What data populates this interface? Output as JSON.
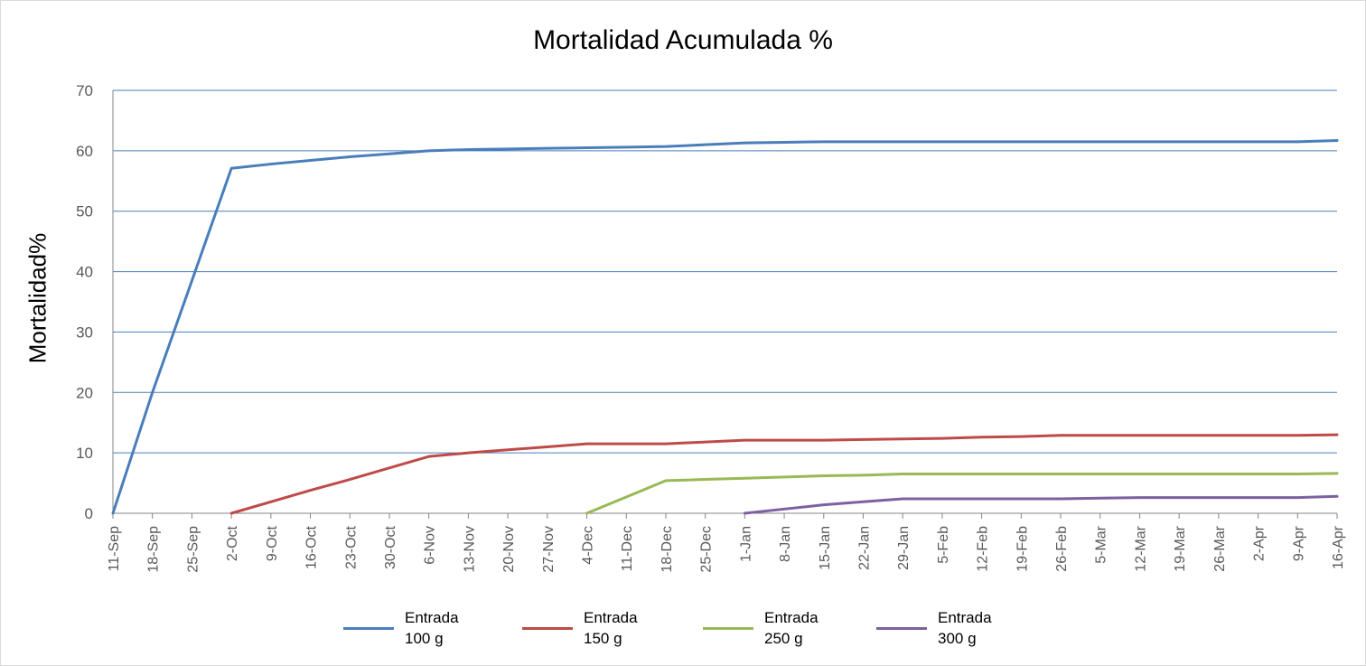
{
  "chart_data": {
    "type": "line",
    "title": "Mortalidad Acumulada %",
    "ylabel": "Mortalidad%",
    "xlabel": "",
    "ylim": [
      0,
      70
    ],
    "yticks": [
      0,
      10,
      20,
      30,
      40,
      50,
      60,
      70
    ],
    "grid": true,
    "legend_position": "bottom",
    "categories": [
      "11-Sep",
      "18-Sep",
      "25-Sep",
      "2-Oct",
      "9-Oct",
      "16-Oct",
      "23-Oct",
      "30-Oct",
      "6-Nov",
      "13-Nov",
      "20-Nov",
      "27-Nov",
      "4-Dec",
      "11-Dec",
      "18-Dec",
      "25-Dec",
      "1-Jan",
      "8-Jan",
      "15-Jan",
      "22-Jan",
      "29-Jan",
      "5-Feb",
      "12-Feb",
      "19-Feb",
      "26-Feb",
      "5-Mar",
      "12-Mar",
      "19-Mar",
      "26-Mar",
      "2-Apr",
      "9-Apr",
      "16-Apr"
    ],
    "series": [
      {
        "name": "Entrada 100 g",
        "name_lines": [
          "Entrada",
          "100 g"
        ],
        "color": "#4a7ebb",
        "values": [
          0,
          20,
          38.5,
          57.1,
          57.8,
          58.4,
          59.0,
          59.5,
          60.0,
          60.2,
          60.3,
          60.4,
          60.5,
          60.6,
          60.7,
          61.0,
          61.3,
          61.4,
          61.5,
          61.5,
          61.5,
          61.5,
          61.5,
          61.5,
          61.5,
          61.5,
          61.5,
          61.5,
          61.5,
          61.5,
          61.5,
          61.7
        ]
      },
      {
        "name": "Entrada 150 g",
        "name_lines": [
          "Entrada",
          "150 g"
        ],
        "color": "#be4b48",
        "values": [
          null,
          null,
          null,
          0,
          1.9,
          3.8,
          5.6,
          7.5,
          9.4,
          10.0,
          10.5,
          11.0,
          11.5,
          11.5,
          11.5,
          11.8,
          12.1,
          12.1,
          12.1,
          12.2,
          12.3,
          12.4,
          12.6,
          12.7,
          12.9,
          12.9,
          12.9,
          12.9,
          12.9,
          12.9,
          12.9,
          13.0
        ]
      },
      {
        "name": "Entrada 250 g",
        "name_lines": [
          "Entrada",
          "250 g"
        ],
        "color": "#98b954",
        "values": [
          null,
          null,
          null,
          null,
          null,
          null,
          null,
          null,
          null,
          null,
          null,
          null,
          0,
          2.7,
          5.4,
          5.6,
          5.8,
          6.0,
          6.2,
          6.3,
          6.5,
          6.5,
          6.5,
          6.5,
          6.5,
          6.5,
          6.5,
          6.5,
          6.5,
          6.5,
          6.5,
          6.6
        ]
      },
      {
        "name": "Entrada 300 g",
        "name_lines": [
          "Entrada",
          "300 g"
        ],
        "color": "#7d60a0",
        "values": [
          null,
          null,
          null,
          null,
          null,
          null,
          null,
          null,
          null,
          null,
          null,
          null,
          null,
          null,
          null,
          null,
          0,
          0.7,
          1.4,
          1.9,
          2.4,
          2.4,
          2.4,
          2.4,
          2.4,
          2.5,
          2.6,
          2.6,
          2.6,
          2.6,
          2.6,
          2.8
        ]
      }
    ]
  }
}
